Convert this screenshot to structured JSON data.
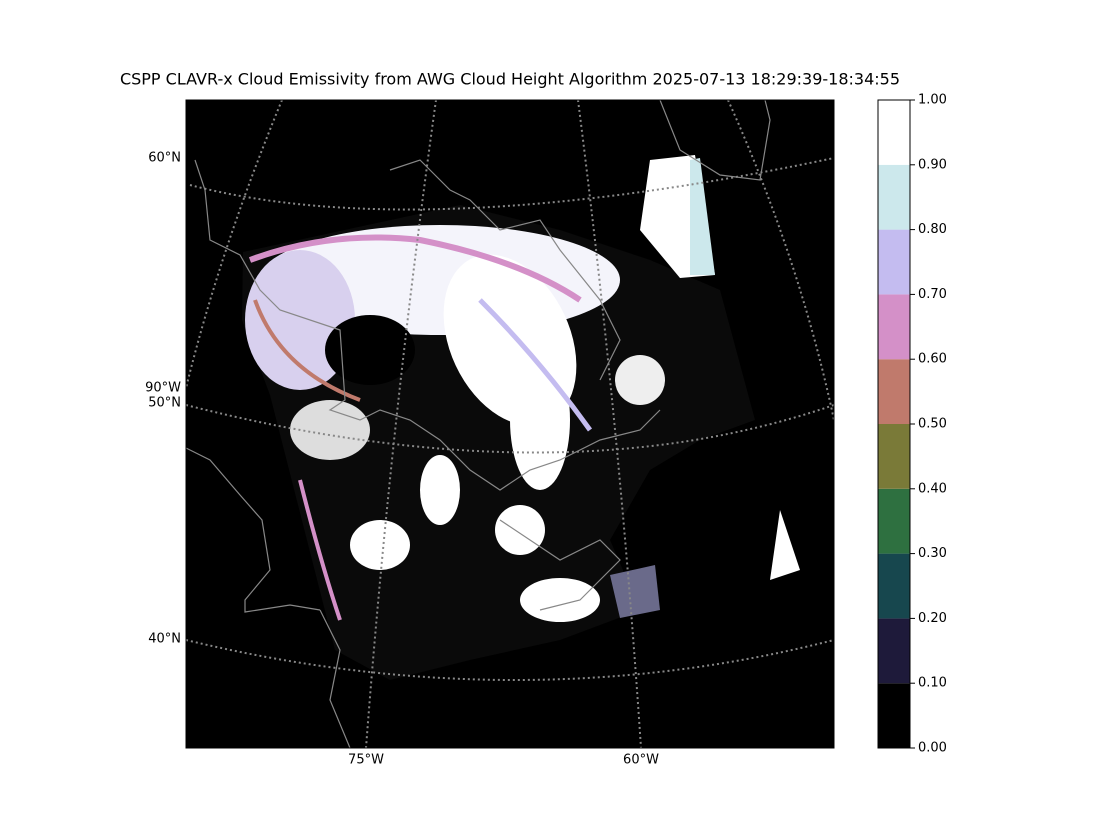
{
  "title": "CSPP CLAVR-x Cloud Emissivity from AWG Cloud Height Algorithm 2025-07-13 18:29:39-18:34:55",
  "map": {
    "lat_labels": [
      "60°N",
      "50°N",
      "40°N"
    ],
    "lon_labels": [
      "90°W",
      "75°W",
      "60°W"
    ]
  },
  "colorbar": {
    "ticks": [
      {
        "value": 0,
        "label": "0.00"
      },
      {
        "value": 0.1,
        "label": "0.10"
      },
      {
        "value": 0.2,
        "label": "0.20"
      },
      {
        "value": 0.3,
        "label": "0.30"
      },
      {
        "value": 0.4,
        "label": "0.40"
      },
      {
        "value": 0.5,
        "label": "0.50"
      },
      {
        "value": 0.6,
        "label": "0.60"
      },
      {
        "value": 0.7,
        "label": "0.70"
      },
      {
        "value": 0.8,
        "label": "0.80"
      },
      {
        "value": 0.9,
        "label": "0.90"
      },
      {
        "value": 1,
        "label": "1.00"
      }
    ],
    "colors": [
      "#000000",
      "#1e1a3a",
      "#17474e",
      "#2e7040",
      "#7a7a38",
      "#c07a6c",
      "#d490c8",
      "#c4bcf0",
      "#cce8ec",
      "#ffffff"
    ]
  }
}
